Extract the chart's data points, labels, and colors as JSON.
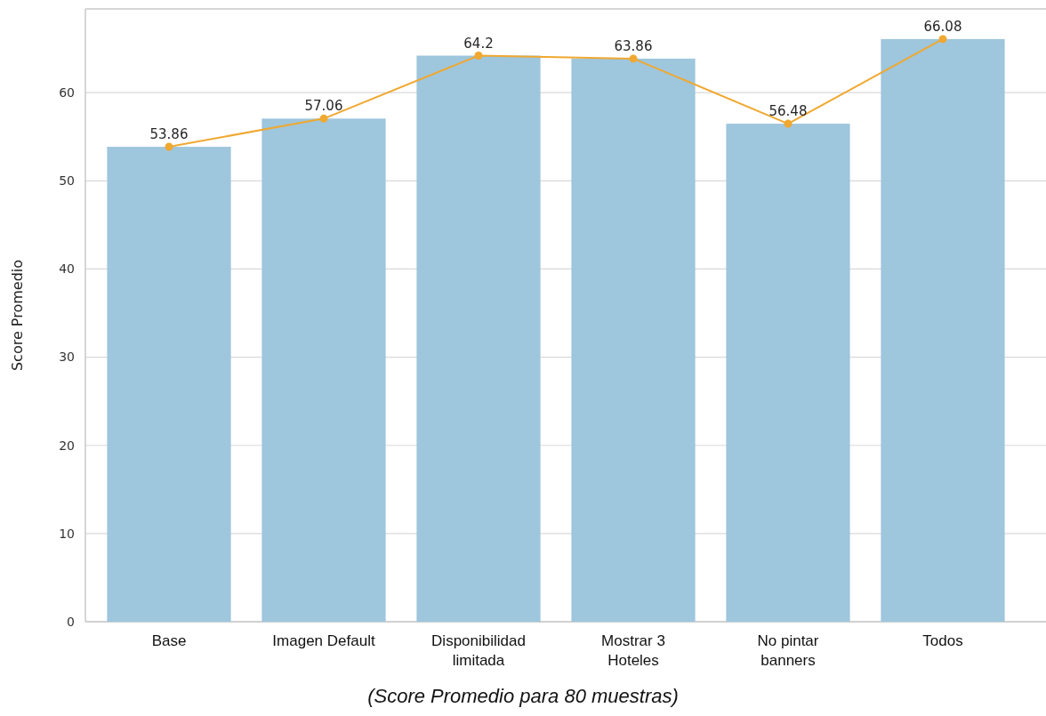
{
  "chart_data": {
    "type": "bar",
    "ylabel": "Score Promedio",
    "categories": [
      "Base",
      "Imagen Default",
      "Disponibilidad\nlimitada",
      "Mostrar 3\nHoteles",
      "No pintar\nbanners",
      "Todos"
    ],
    "series": [
      {
        "color": "#9ec6dd",
        "values": [
          53.86,
          57.06,
          64.2,
          63.86,
          56.48,
          66.08
        ]
      },
      {
        "type": "line",
        "color": "#f0a830",
        "values": [
          53.86,
          57.06,
          64.2,
          63.86,
          56.48,
          66.08
        ],
        "value_labels": [
          "53.86",
          "57.06",
          "64.2",
          "63.86",
          "56.48",
          "66.08"
        ]
      }
    ],
    "ylim": [
      0,
      69.5
    ],
    "yticks": [
      0,
      10,
      20,
      30,
      40,
      50,
      60
    ],
    "grid": "y",
    "marker": "circle",
    "line_style": "solid",
    "annotations": [
      "(Score Promedio para 80 muestras)"
    ]
  }
}
